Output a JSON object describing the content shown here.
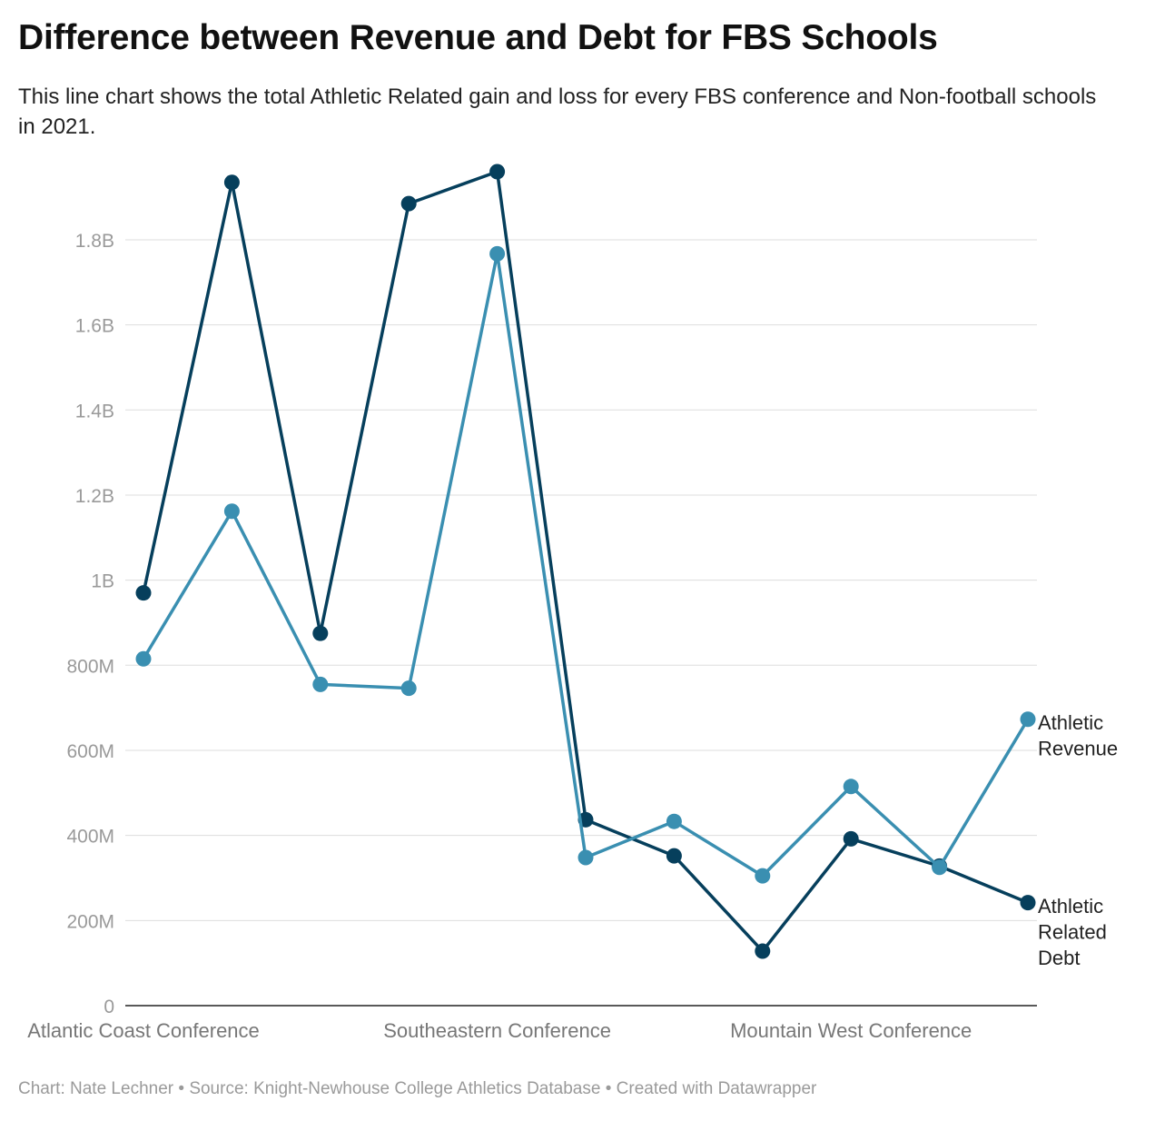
{
  "title": "Difference between Revenue and Debt for FBS Schools",
  "subtitle": "This line chart shows the total Athletic Related gain and loss for every FBS conference and Non-football schools in 2021.",
  "footer": {
    "chart_credit": "Chart: Nate Lechner",
    "source": "Source: Knight-Newhouse College Athletics Database",
    "created_with": "Created with Datawrapper",
    "separator": "•"
  },
  "colors": {
    "revenue": "#3a8fb1",
    "debt": "#063f5c",
    "grid": "#dddddd",
    "axis": "#222222"
  },
  "chart_data": {
    "type": "line",
    "x": [
      1,
      2,
      3,
      4,
      5,
      6,
      7,
      8,
      9,
      10,
      11
    ],
    "x_tick_labels": [
      {
        "x": 1,
        "label": "Atlantic Coast Conference"
      },
      {
        "x": 5,
        "label": "Southeastern Conference"
      },
      {
        "x": 9,
        "label": "Mountain West Conference"
      }
    ],
    "series": [
      {
        "name": "Athletic Related Debt",
        "label_lines": [
          "Athletic",
          "Related",
          "Debt"
        ],
        "color": "#063f5c",
        "values": [
          970000000,
          1935000000,
          875000000,
          1885000000,
          1960000000,
          437000000,
          352000000,
          128000000,
          392000000,
          328000000,
          242000000
        ]
      },
      {
        "name": "Athletic Revenue",
        "label_lines": [
          "Athletic",
          "Revenue"
        ],
        "color": "#3a8fb1",
        "values": [
          815000000,
          1162000000,
          755000000,
          746000000,
          1767000000,
          348000000,
          433000000,
          305000000,
          515000000,
          325000000,
          673000000
        ]
      }
    ],
    "ylim": [
      0,
      1960000000
    ],
    "y_ticks": [
      {
        "value": 0,
        "label": "0"
      },
      {
        "value": 200000000,
        "label": "200M"
      },
      {
        "value": 400000000,
        "label": "400M"
      },
      {
        "value": 600000000,
        "label": "600M"
      },
      {
        "value": 800000000,
        "label": "800M"
      },
      {
        "value": 1000000000,
        "label": "1B"
      },
      {
        "value": 1200000000,
        "label": "1.2B"
      },
      {
        "value": 1400000000,
        "label": "1.4B"
      },
      {
        "value": 1600000000,
        "label": "1.6B"
      },
      {
        "value": 1800000000,
        "label": "1.8B"
      }
    ],
    "grid": true,
    "legend": "direct labels at right end of lines"
  }
}
